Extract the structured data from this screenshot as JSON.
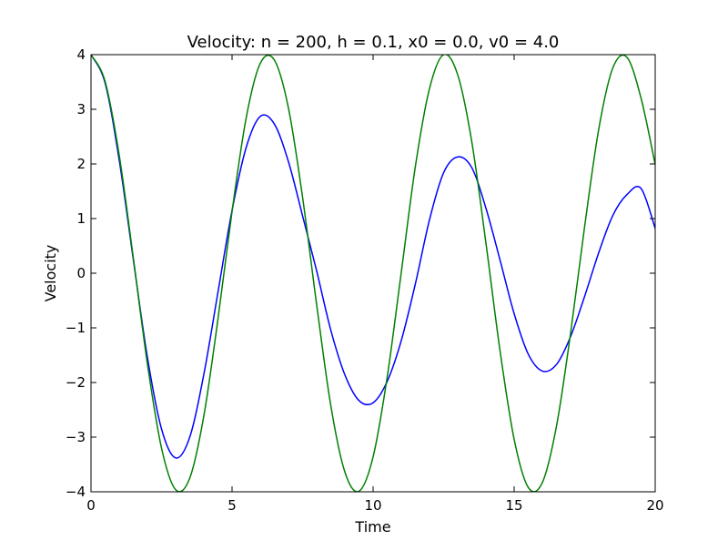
{
  "chart_data": {
    "type": "line",
    "title": "Velocity: n = 200, h = 0.1, x0 = 0.0, v0 = 4.0",
    "xlabel": "Time",
    "ylabel": "Velocity",
    "xlim": [
      0,
      20
    ],
    "ylim": [
      -4,
      4
    ],
    "xticks": [
      0,
      5,
      10,
      15,
      20
    ],
    "xtick_labels": [
      "0",
      "5",
      "10",
      "15",
      "20"
    ],
    "yticks": [
      -4,
      -3,
      -2,
      -1,
      0,
      1,
      2,
      3,
      4
    ],
    "ytick_labels": [
      "−4",
      "−3",
      "−2",
      "−1",
      "0",
      "1",
      "2",
      "3",
      "4"
    ],
    "grid": false,
    "series": [
      {
        "color": "#0000ff",
        "x": [
          0.0,
          0.5,
          1.0,
          1.5,
          2.0,
          2.5,
          3.0,
          3.5,
          4.0,
          4.5,
          5.0,
          5.5,
          6.0,
          6.5,
          7.0,
          7.5,
          8.0,
          8.5,
          9.0,
          9.5,
          10.0,
          10.5,
          11.0,
          11.5,
          12.0,
          12.5,
          13.0,
          13.5,
          14.0,
          14.5,
          15.0,
          15.5,
          16.0,
          16.5,
          17.0,
          17.5,
          18.0,
          18.5,
          19.0,
          19.5,
          20.0
        ],
        "y": [
          4.0,
          3.48,
          2.07,
          0.25,
          -1.54,
          -2.85,
          -3.38,
          -3.0,
          -1.85,
          -0.35,
          1.15,
          2.3,
          2.87,
          2.73,
          2.04,
          1.05,
          0.04,
          -1.04,
          -1.86,
          -2.33,
          -2.37,
          -1.98,
          -1.23,
          -0.19,
          0.98,
          1.84,
          2.13,
          1.93,
          1.19,
          0.24,
          -0.74,
          -1.48,
          -1.79,
          -1.67,
          -1.16,
          -0.42,
          0.38,
          1.06,
          1.44,
          1.55,
          0.82
        ]
      },
      {
        "color": "#008000",
        "x": [
          0.0,
          0.5,
          1.0,
          1.5,
          2.0,
          2.5,
          3.0,
          3.5,
          4.0,
          4.5,
          5.0,
          5.5,
          6.0,
          6.5,
          7.0,
          7.5,
          8.0,
          8.5,
          9.0,
          9.5,
          10.0,
          10.5,
          11.0,
          11.5,
          12.0,
          12.5,
          13.0,
          13.5,
          14.0,
          14.5,
          15.0,
          15.5,
          16.0,
          16.5,
          17.0,
          17.5,
          18.0,
          18.5,
          19.0,
          19.5,
          20.0
        ],
        "y": [
          4.0,
          3.51,
          2.16,
          0.28,
          -1.66,
          -3.2,
          -3.96,
          -3.75,
          -2.61,
          -0.84,
          1.13,
          2.84,
          3.84,
          3.9,
          3.02,
          1.39,
          -0.58,
          -2.42,
          -3.64,
          -3.99,
          -3.36,
          -1.9,
          0.02,
          1.96,
          3.38,
          4.0,
          3.63,
          2.4,
          0.55,
          -1.42,
          -3.04,
          -3.92,
          -3.83,
          -2.8,
          -1.1,
          0.86,
          2.64,
          3.76,
          3.95,
          3.2,
          1.99
        ]
      }
    ]
  }
}
